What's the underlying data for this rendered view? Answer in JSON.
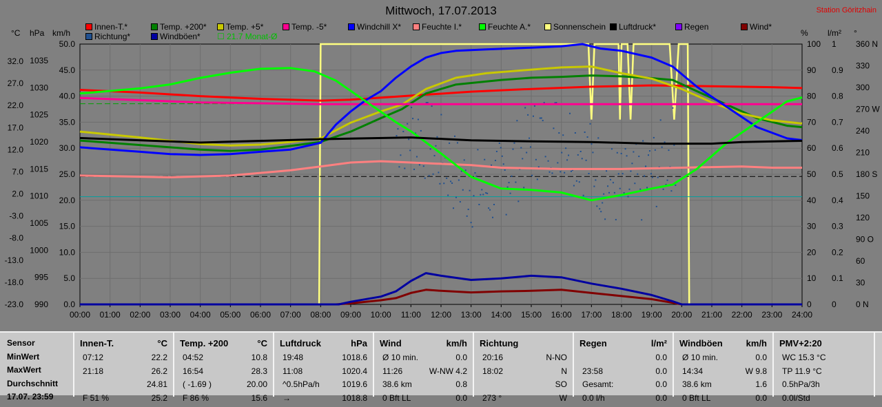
{
  "header": {
    "title": "Mittwoch, 17.07.2013",
    "station": "Station Göritzhain"
  },
  "units": {
    "c": "°C",
    "hpa": "hPa",
    "kmh": "km/h",
    "pct": "%",
    "lm2": "l/m²",
    "deg": "°"
  },
  "legend": [
    {
      "label": "Innen-T.*",
      "color": "#ff0000"
    },
    {
      "label": "Temp. +200*",
      "color": "#008000"
    },
    {
      "label": "Temp. +5*",
      "color": "#c8c800"
    },
    {
      "label": "Temp. -5*",
      "color": "#ff0090"
    },
    {
      "label": "Windchill X*",
      "color": "#0000ff"
    },
    {
      "label": "Feuchte I.*",
      "color": "#ff8080"
    },
    {
      "label": "Feuchte A.*",
      "color": "#00ff00"
    },
    {
      "label": "Sonnenschein",
      "color": "#ffff80"
    },
    {
      "label": "Luftdruck*",
      "color": "#000000"
    },
    {
      "label": "Regen",
      "color": "#8000ff"
    },
    {
      "label": "Wind*",
      "color": "#800000"
    },
    {
      "label": "Richtung*",
      "color": "#205090"
    },
    {
      "label": "Windböen*",
      "color": "#0000a0"
    }
  ],
  "monthly_note": "21.7 Monat-Ø",
  "chart_data": {
    "type": "line",
    "x_ticks": [
      "00:00",
      "01:00",
      "02:00",
      "03:00",
      "04:00",
      "05:00",
      "06:00",
      "07:00",
      "08:00",
      "09:00",
      "10:00",
      "11:00",
      "12:00",
      "13:00",
      "14:00",
      "15:00",
      "16:00",
      "17:00",
      "18:00",
      "19:00",
      "20:00",
      "21:00",
      "22:00",
      "23:00",
      "24:00"
    ],
    "axis_left_temp": [
      "32.0",
      "27.0",
      "22.0",
      "17.0",
      "12.0",
      "7.0",
      "2.0",
      "-3.0",
      "-8.0",
      "-13.0",
      "-18.0",
      "-23.0"
    ],
    "axis_left_hpa": [
      "1035",
      "1030",
      "1025",
      "1020",
      "1015",
      "1010",
      "1005",
      "1000",
      "995",
      "990"
    ],
    "axis_left_kmh": [
      "50.0",
      "45.0",
      "40.0",
      "35.0",
      "30.0",
      "25.0",
      "20.0",
      "15.0",
      "10.0",
      "5.0",
      "0.0"
    ],
    "axis_right_pct": [
      "100",
      "90",
      "80",
      "70",
      "60",
      "50",
      "40",
      "30",
      "20",
      "10",
      "0"
    ],
    "axis_right_lm2": [
      "1",
      "0.9",
      "0.8",
      "0.7",
      "0.6",
      "0.5",
      "0.4",
      "0.3",
      "0.2",
      "0.1",
      "0"
    ],
    "axis_right_deg": [
      "360 N",
      "330",
      "300",
      "270 W",
      "240",
      "210",
      "180 S",
      "150",
      "120",
      "90 O",
      "60",
      "30",
      "0 N"
    ],
    "x_range_hours": [
      0,
      24
    ],
    "temp_range": [
      -23,
      35
    ],
    "hpa_range": [
      990,
      1036
    ],
    "pct_range": [
      0,
      100
    ],
    "series": [
      {
        "name": "Innen-T.*",
        "color": "#ff0000",
        "unit": "°C",
        "points": [
          [
            0,
            24.8
          ],
          [
            2,
            24.2
          ],
          [
            4,
            23.4
          ],
          [
            6,
            22.8
          ],
          [
            8,
            22.4
          ],
          [
            9,
            22.6
          ],
          [
            11,
            23.5
          ],
          [
            13,
            24.4
          ],
          [
            15,
            25.0
          ],
          [
            17,
            25.5
          ],
          [
            19,
            25.8
          ],
          [
            21,
            25.6
          ],
          [
            23,
            25.4
          ],
          [
            24,
            25.2
          ]
        ]
      },
      {
        "name": "Temp. +200*",
        "color": "#008000",
        "unit": "°C",
        "points": [
          [
            0,
            13.5
          ],
          [
            2,
            12.5
          ],
          [
            4,
            11.5
          ],
          [
            5,
            11.2
          ],
          [
            6,
            11.5
          ],
          [
            7,
            12.3
          ],
          [
            8,
            13.2
          ],
          [
            9,
            15.5
          ],
          [
            10,
            18.5
          ],
          [
            10.7,
            20.5
          ],
          [
            11.5,
            24.0
          ],
          [
            12.5,
            26.0
          ],
          [
            14,
            27.0
          ],
          [
            15,
            27.5
          ],
          [
            16,
            27.7
          ],
          [
            17,
            28.0
          ],
          [
            18,
            27.8
          ],
          [
            19,
            27.4
          ],
          [
            19.7,
            27.0
          ],
          [
            20.5,
            24.5
          ],
          [
            21.5,
            21.5
          ],
          [
            22.5,
            18.5
          ],
          [
            23.5,
            16.8
          ],
          [
            24,
            16.5
          ]
        ]
      },
      {
        "name": "Temp. +5*",
        "color": "#c8c800",
        "unit": "°C",
        "points": [
          [
            0,
            15.5
          ],
          [
            2,
            14.2
          ],
          [
            4,
            12.7
          ],
          [
            5,
            12.4
          ],
          [
            6,
            12.6
          ],
          [
            7,
            13.2
          ],
          [
            8,
            14.0
          ],
          [
            9,
            17.5
          ],
          [
            10,
            20.0
          ],
          [
            10.7,
            21.5
          ],
          [
            11.5,
            25.0
          ],
          [
            12.5,
            27.5
          ],
          [
            13.5,
            28.5
          ],
          [
            15,
            29.3
          ],
          [
            16,
            29.8
          ],
          [
            17,
            30.0
          ],
          [
            18,
            28.5
          ],
          [
            19,
            27.3
          ],
          [
            20,
            25.0
          ],
          [
            21,
            22.0
          ],
          [
            22,
            19.5
          ],
          [
            23,
            18.0
          ],
          [
            24,
            17.3
          ]
        ]
      },
      {
        "name": "Temp. -5*",
        "color": "#ff0090",
        "unit": "°C",
        "points": [
          [
            0,
            23.0
          ],
          [
            4,
            22.0
          ],
          [
            8,
            21.6
          ],
          [
            12,
            21.6
          ],
          [
            16,
            21.6
          ],
          [
            20,
            21.6
          ],
          [
            24,
            21.6
          ]
        ]
      },
      {
        "name": "Windchill X*",
        "color": "#0000ff",
        "unit": "°C",
        "points": [
          [
            0,
            12.0
          ],
          [
            2,
            11.0
          ],
          [
            3,
            10.5
          ],
          [
            4,
            10.3
          ],
          [
            5,
            10.5
          ],
          [
            6,
            11.0
          ],
          [
            7,
            11.5
          ],
          [
            8,
            13.0
          ],
          [
            8.5,
            17.0
          ],
          [
            9,
            20.0
          ],
          [
            9.5,
            22.5
          ],
          [
            10,
            24.5
          ],
          [
            10.5,
            27.5
          ],
          [
            11,
            30.0
          ],
          [
            11.5,
            32.0
          ],
          [
            12,
            33.0
          ],
          [
            12.5,
            33.5
          ],
          [
            13.5,
            33.8
          ],
          [
            15,
            34.2
          ],
          [
            16,
            34.5
          ],
          [
            16.7,
            35.0
          ],
          [
            17.3,
            34.0
          ],
          [
            18,
            33.5
          ],
          [
            19,
            32.0
          ],
          [
            19.7,
            30.0
          ],
          [
            20.5,
            25.5
          ],
          [
            21.5,
            21.0
          ],
          [
            22.5,
            16.5
          ],
          [
            23.5,
            14.0
          ],
          [
            24,
            13.6
          ]
        ]
      },
      {
        "name": "Feuchte I.*",
        "color": "#ff8080",
        "unit": "%",
        "points": [
          [
            0,
            49.5
          ],
          [
            3,
            48.8
          ],
          [
            5,
            49.5
          ],
          [
            7,
            51.5
          ],
          [
            8,
            53.0
          ],
          [
            9,
            54.5
          ],
          [
            10,
            55.0
          ],
          [
            11,
            54.5
          ],
          [
            13,
            53.5
          ],
          [
            14,
            52.5
          ],
          [
            16,
            52.0
          ],
          [
            18,
            52.0
          ],
          [
            20,
            52.5
          ],
          [
            22,
            53.0
          ],
          [
            23,
            52.5
          ],
          [
            24,
            52.5
          ]
        ]
      },
      {
        "name": "Feuchte A.*",
        "color": "#00ff00",
        "unit": "%",
        "points": [
          [
            0,
            81.0
          ],
          [
            2,
            83.0
          ],
          [
            3,
            84.5
          ],
          [
            4,
            87.0
          ],
          [
            5,
            89.0
          ],
          [
            6,
            90.5
          ],
          [
            7,
            90.8
          ],
          [
            7.8,
            89.5
          ],
          [
            8.5,
            86.0
          ],
          [
            9,
            82.0
          ],
          [
            9.5,
            78.0
          ],
          [
            10,
            74.0
          ],
          [
            10.5,
            70.0
          ],
          [
            11,
            66.5
          ],
          [
            12,
            58.0
          ],
          [
            13,
            49.0
          ],
          [
            14,
            44.5
          ],
          [
            15,
            44.0
          ],
          [
            16,
            43.0
          ],
          [
            17,
            40.0
          ],
          [
            18,
            42.0
          ],
          [
            19,
            44.5
          ],
          [
            19.7,
            46.0
          ],
          [
            20.5,
            52.0
          ],
          [
            21.5,
            62.0
          ],
          [
            22.5,
            70.0
          ],
          [
            23.5,
            78.0
          ],
          [
            24,
            79.5
          ]
        ]
      },
      {
        "name": "Luftdruck*",
        "color": "#000000",
        "unit": "hPa",
        "points": [
          [
            0,
            1019.4
          ],
          [
            4,
            1018.6
          ],
          [
            8,
            1019.2
          ],
          [
            11,
            1019.5
          ],
          [
            13,
            1019.0
          ],
          [
            15,
            1018.8
          ],
          [
            17,
            1018.7
          ],
          [
            19,
            1018.4
          ],
          [
            21,
            1018.4
          ],
          [
            22,
            1018.7
          ],
          [
            24,
            1018.9
          ]
        ]
      },
      {
        "name": "Wind*",
        "color": "#800000",
        "unit": "km/h",
        "points": [
          [
            0,
            0.0
          ],
          [
            8.5,
            0.0
          ],
          [
            9,
            0.2
          ],
          [
            10,
            0.8
          ],
          [
            10.5,
            1.2
          ],
          [
            11,
            2.2
          ],
          [
            11.5,
            2.8
          ],
          [
            12,
            2.6
          ],
          [
            13,
            2.3
          ],
          [
            14,
            2.5
          ],
          [
            15,
            2.6
          ],
          [
            16,
            2.8
          ],
          [
            17,
            2.2
          ],
          [
            18,
            1.6
          ],
          [
            19,
            1.0
          ],
          [
            19.7,
            0.3
          ],
          [
            20,
            0.0
          ],
          [
            24,
            0.0
          ]
        ]
      },
      {
        "name": "Windböen*",
        "color": "#0000a0",
        "unit": "km/h",
        "points": [
          [
            0,
            0.0
          ],
          [
            8.6,
            0.0
          ],
          [
            9,
            0.5
          ],
          [
            10,
            1.5
          ],
          [
            10.5,
            2.5
          ],
          [
            11,
            4.5
          ],
          [
            11.5,
            6.0
          ],
          [
            12,
            5.5
          ],
          [
            13,
            4.7
          ],
          [
            14,
            5.0
          ],
          [
            15,
            5.5
          ],
          [
            16,
            5.2
          ],
          [
            17,
            4.0
          ],
          [
            18,
            3.0
          ],
          [
            19,
            1.8
          ],
          [
            19.7,
            0.6
          ],
          [
            20,
            0.0
          ],
          [
            24,
            0.0
          ]
        ]
      }
    ],
    "sunshine": {
      "name": "Sonnenschein",
      "color": "#ffff80",
      "on_intervals_hours": [
        [
          8.0,
          20.2
        ]
      ],
      "dips_hours": [
        [
          16.9,
          17.1
        ],
        [
          17.9,
          18.0
        ],
        [
          18.2,
          18.4
        ],
        [
          19.6,
          19.9
        ]
      ]
    },
    "direction_scatter_deg": {
      "name": "Richtung*",
      "color": "#205090",
      "start_hour": 10.5,
      "end_hour": 19.8,
      "min_deg": 70,
      "max_deg": 280
    },
    "reference_lines": [
      {
        "label": "21.7 Monat-Ø",
        "value_c": 21.7,
        "color": "#00a000",
        "style": "dashed"
      },
      {
        "value_c": 5.5,
        "color": "#000000",
        "style": "dashed"
      },
      {
        "value_c": 1.0,
        "color": "#00a0a0",
        "style": "solid"
      }
    ]
  },
  "table": {
    "row_labels": [
      "Sensor",
      "MinWert",
      "MaxWert",
      "Durchschnitt",
      "17.07. 23:59"
    ],
    "columns": [
      {
        "title": "Innen-T.",
        "unit": "°C",
        "rows": [
          [
            "07:12",
            "22.2"
          ],
          [
            "21:18",
            "26.2"
          ],
          [
            "",
            "24.81"
          ],
          [
            "F 51 %",
            "25.2"
          ]
        ]
      },
      {
        "title": "Temp. +200",
        "unit": "°C",
        "rows": [
          [
            "04:52",
            "10.8"
          ],
          [
            "16:54",
            "28.3"
          ],
          [
            "( -1.69 )",
            "20.00"
          ],
          [
            "F 86 %",
            "15.6"
          ]
        ]
      },
      {
        "title": "Luftdruck",
        "unit": "hPa",
        "rows": [
          [
            "19:48",
            "1018.6"
          ],
          [
            "11:08",
            "1020.4"
          ],
          [
            "^0.5hPa/h",
            "1019.6"
          ],
          [
            "→",
            "1018.8"
          ]
        ]
      },
      {
        "title": "Wind",
        "unit": "km/h",
        "rows": [
          [
            "Ø 10 min.",
            "0.0"
          ],
          [
            "11:26",
            "W-NW 4.2"
          ],
          [
            "38.6 km",
            "0.8"
          ],
          [
            "0 Bft LL",
            "0.0"
          ]
        ]
      },
      {
        "title": "Richtung",
        "unit": "",
        "rows": [
          [
            "20:16",
            "N-NO"
          ],
          [
            "18:02",
            "N"
          ],
          [
            "",
            "SO"
          ],
          [
            "273 °",
            "W"
          ]
        ]
      },
      {
        "title": "Regen",
        "unit": "l/m²",
        "rows": [
          [
            "",
            "0.0"
          ],
          [
            "23:58",
            "0.0"
          ],
          [
            "Gesamt:",
            "0.0"
          ],
          [
            "0.0 l/h",
            "0.0"
          ]
        ]
      },
      {
        "title": "Windböen",
        "unit": "km/h",
        "rows": [
          [
            "Ø 10 min.",
            "0.0"
          ],
          [
            "14:34",
            "W 9.8"
          ],
          [
            "38.6 km",
            "1.6"
          ],
          [
            "0 Bft LL",
            "0.0"
          ]
        ]
      },
      {
        "title": "PMV+2:20",
        "unit": "",
        "rows": [
          [
            "WC 15.3 °C",
            ""
          ],
          [
            "TP 11.9 °C",
            ""
          ],
          [
            "0.5hPa/3h",
            ""
          ],
          [
            "0.0l/Std",
            ""
          ]
        ]
      }
    ]
  }
}
